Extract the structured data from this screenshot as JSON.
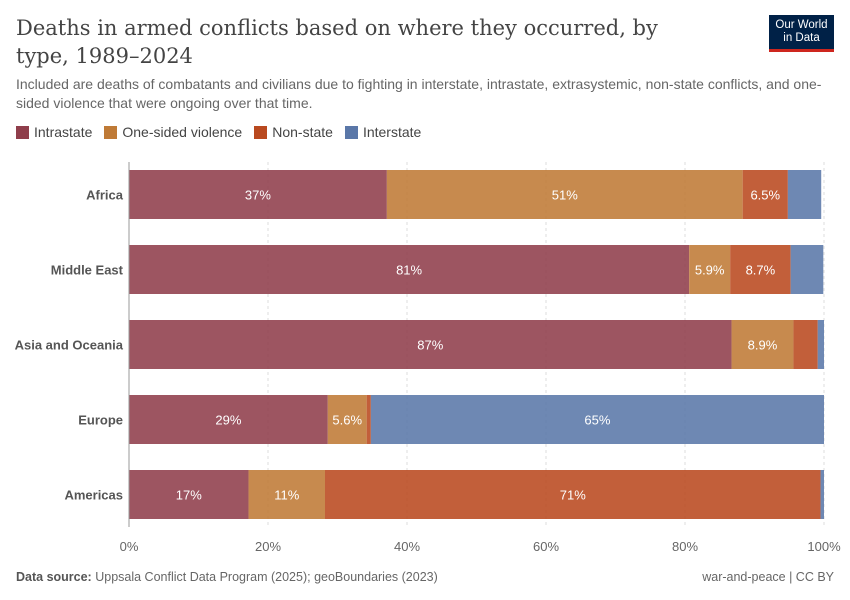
{
  "header": {
    "title": "Deaths in armed conflicts based on where they occurred, by type, 1989–2024",
    "subtitle": "Included are deaths of combatants and civilians due to fighting in interstate, intrastate, extrasystemic, non-state conflicts, and one-sided violence that were ongoing over that time.",
    "logo_line1": "Our World",
    "logo_line2": "in Data"
  },
  "legend": [
    {
      "label": "Intrastate",
      "color": "#8f3e4b"
    },
    {
      "label": "One-sided violence",
      "color": "#bf7a36"
    },
    {
      "label": "Non-state",
      "color": "#b9491f"
    },
    {
      "label": "Interstate",
      "color": "#5a77a8"
    }
  ],
  "footer": {
    "source_label": "Data source:",
    "source_text": "Uppsala Conflict Data Program (2025); geoBoundaries (2023)",
    "right": "war-and-peace | CC BY"
  },
  "chart_data": {
    "type": "bar",
    "orientation": "horizontal",
    "stacked": true,
    "categories": [
      "Africa",
      "Middle East",
      "Asia and Oceania",
      "Europe",
      "Americas"
    ],
    "series": [
      {
        "name": "Intrastate",
        "color": "#8f3e4b",
        "values": [
          37.1,
          80.6,
          86.7,
          28.6,
          17.2
        ],
        "labels": [
          "37%",
          "81%",
          "87%",
          "29%",
          "17%"
        ]
      },
      {
        "name": "One-sided violence",
        "color": "#bf7a36",
        "values": [
          51.2,
          5.9,
          8.9,
          5.6,
          11.0
        ],
        "labels": [
          "51%",
          "5.9%",
          "8.9%",
          "5.6%",
          "11%"
        ]
      },
      {
        "name": "Non-state",
        "color": "#b9491f",
        "values": [
          6.5,
          8.7,
          3.5,
          0.6,
          71.3
        ],
        "labels": [
          "",
          "8.7%",
          "",
          "",
          "71%"
        ]
      },
      {
        "name": "Interstate",
        "color": "#5a77a8",
        "values": [
          4.8,
          4.7,
          0.9,
          65.2,
          0.5
        ],
        "labels": [
          "",
          "",
          "",
          "65%",
          ""
        ]
      }
    ],
    "extra_labels": [
      {
        "category": "Africa",
        "series": "Non-state",
        "text": "6.5%"
      }
    ],
    "xlim": [
      0,
      100
    ],
    "xticks": [
      "0%",
      "20%",
      "40%",
      "60%",
      "80%",
      "100%"
    ],
    "grid": true
  }
}
